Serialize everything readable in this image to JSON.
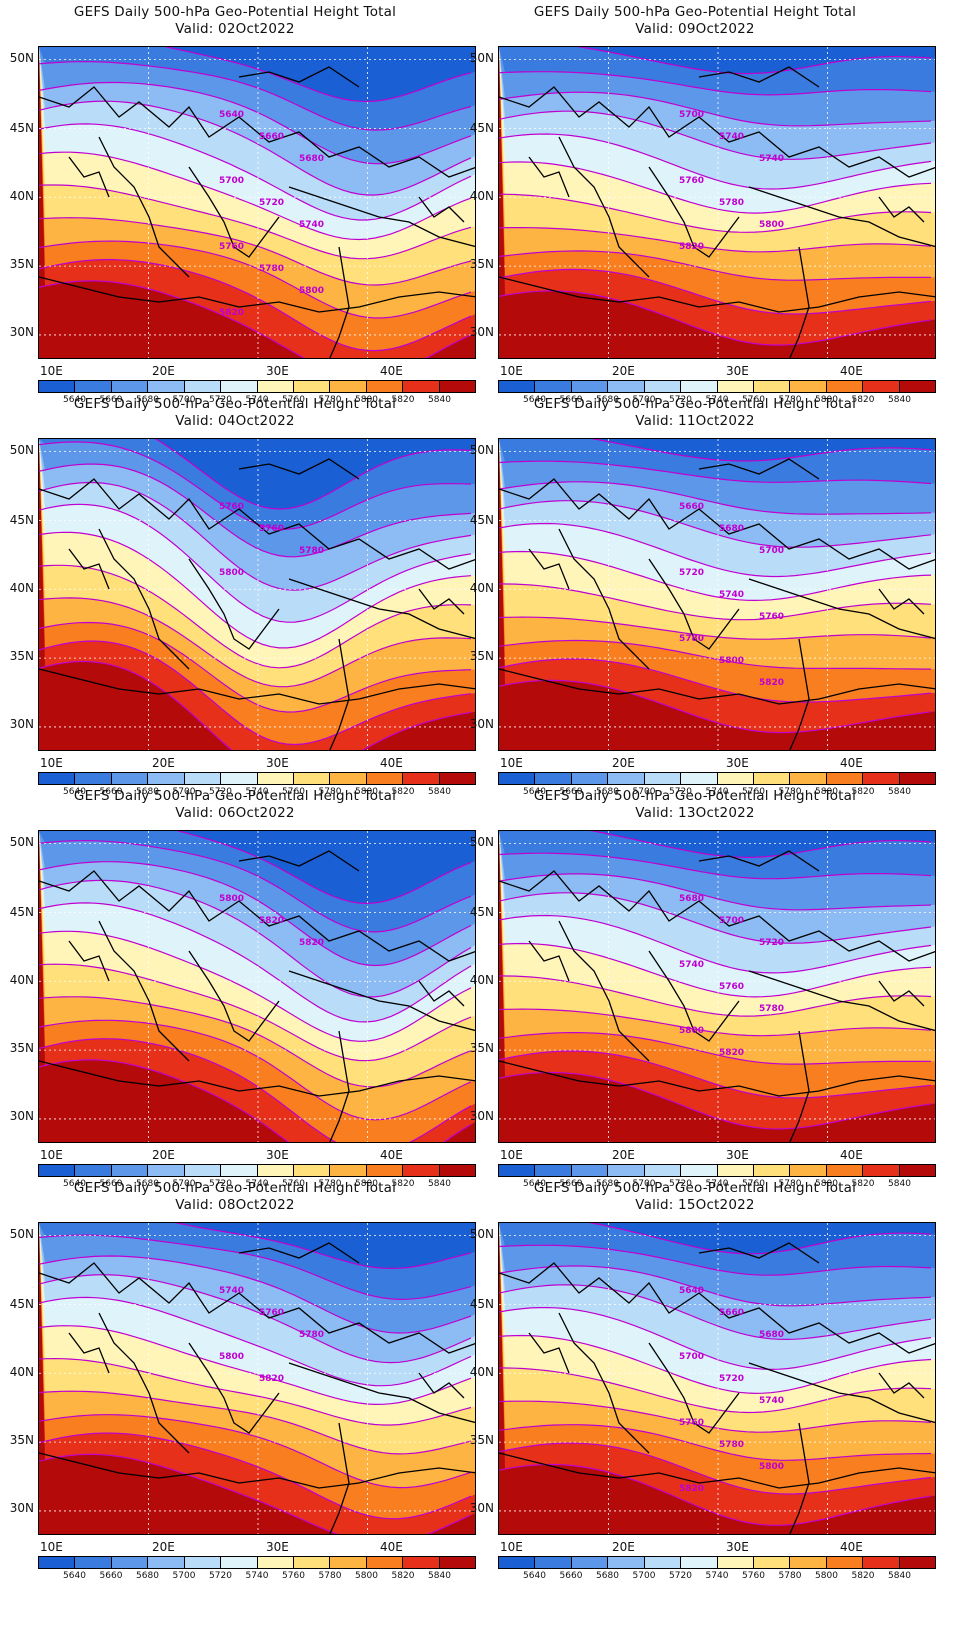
{
  "title_line": "GEFS Daily 500-hPa Geo-Potential Height Total",
  "panels": [
    {
      "valid": "Valid: 02Oct2022",
      "ridge": 0.35,
      "trough": 0.75,
      "trough_depth": 0.55,
      "iso_labels": [
        "5640",
        "5660",
        "5680",
        "5700",
        "5720",
        "5740",
        "5760",
        "5780",
        "5800",
        "5820"
      ]
    },
    {
      "valid": "Valid: 09Oct2022",
      "ridge": 0.55,
      "trough": 0.6,
      "trough_depth": 0.2,
      "iso_labels": [
        "5700",
        "5740",
        "5740",
        "5760",
        "5780",
        "5800",
        "5820"
      ]
    },
    {
      "valid": "Valid: 04Oct2022",
      "ridge": 0.1,
      "trough": 0.55,
      "trough_depth": 0.7,
      "iso_labels": [
        "5760",
        "5760",
        "5780",
        "5800"
      ]
    },
    {
      "valid": "Valid: 11Oct2022",
      "ridge": 0.5,
      "trough": 0.6,
      "trough_depth": 0.15,
      "iso_labels": [
        "5660",
        "5680",
        "5700",
        "5720",
        "5740",
        "5760",
        "5780",
        "5800",
        "5820"
      ]
    },
    {
      "valid": "Valid: 06Oct2022",
      "ridge": 0.25,
      "trough": 0.75,
      "trough_depth": 0.75,
      "iso_labels": [
        "5800",
        "5820",
        "5820"
      ]
    },
    {
      "valid": "Valid: 13Oct2022",
      "ridge": 0.5,
      "trough": 0.6,
      "trough_depth": 0.2,
      "iso_labels": [
        "5680",
        "5700",
        "5720",
        "5740",
        "5760",
        "5780",
        "5800",
        "5820"
      ]
    },
    {
      "valid": "Valid: 08Oct2022",
      "ridge": 0.3,
      "trough": 0.8,
      "trough_depth": 0.45,
      "iso_labels": [
        "5740",
        "5760",
        "5780",
        "5800",
        "5820"
      ]
    },
    {
      "valid": "Valid: 15Oct2022",
      "ridge": 0.5,
      "trough": 0.6,
      "trough_depth": 0.25,
      "iso_labels": [
        "5640",
        "5660",
        "5680",
        "5700",
        "5720",
        "5740",
        "5760",
        "5780",
        "5800",
        "5820"
      ]
    }
  ],
  "y_ticks": [
    "50N",
    "45N",
    "40N",
    "35N",
    "30N"
  ],
  "x_ticks": [
    "10E",
    "20E",
    "30E",
    "40E"
  ],
  "colorbar_labels": [
    "5640",
    "5660",
    "5680",
    "5700",
    "5720",
    "5740",
    "5760",
    "5780",
    "5800",
    "5820",
    "5840"
  ],
  "colorbar_colors": [
    "#1a5fd4",
    "#3a7be0",
    "#5c97ea",
    "#8cbcf3",
    "#b9ddf8",
    "#dff3fb",
    "#fff5b8",
    "#ffe07a",
    "#fdb443",
    "#f97e20",
    "#e6301a",
    "#b40a0a"
  ],
  "isoline_color": "#c000d0"
}
